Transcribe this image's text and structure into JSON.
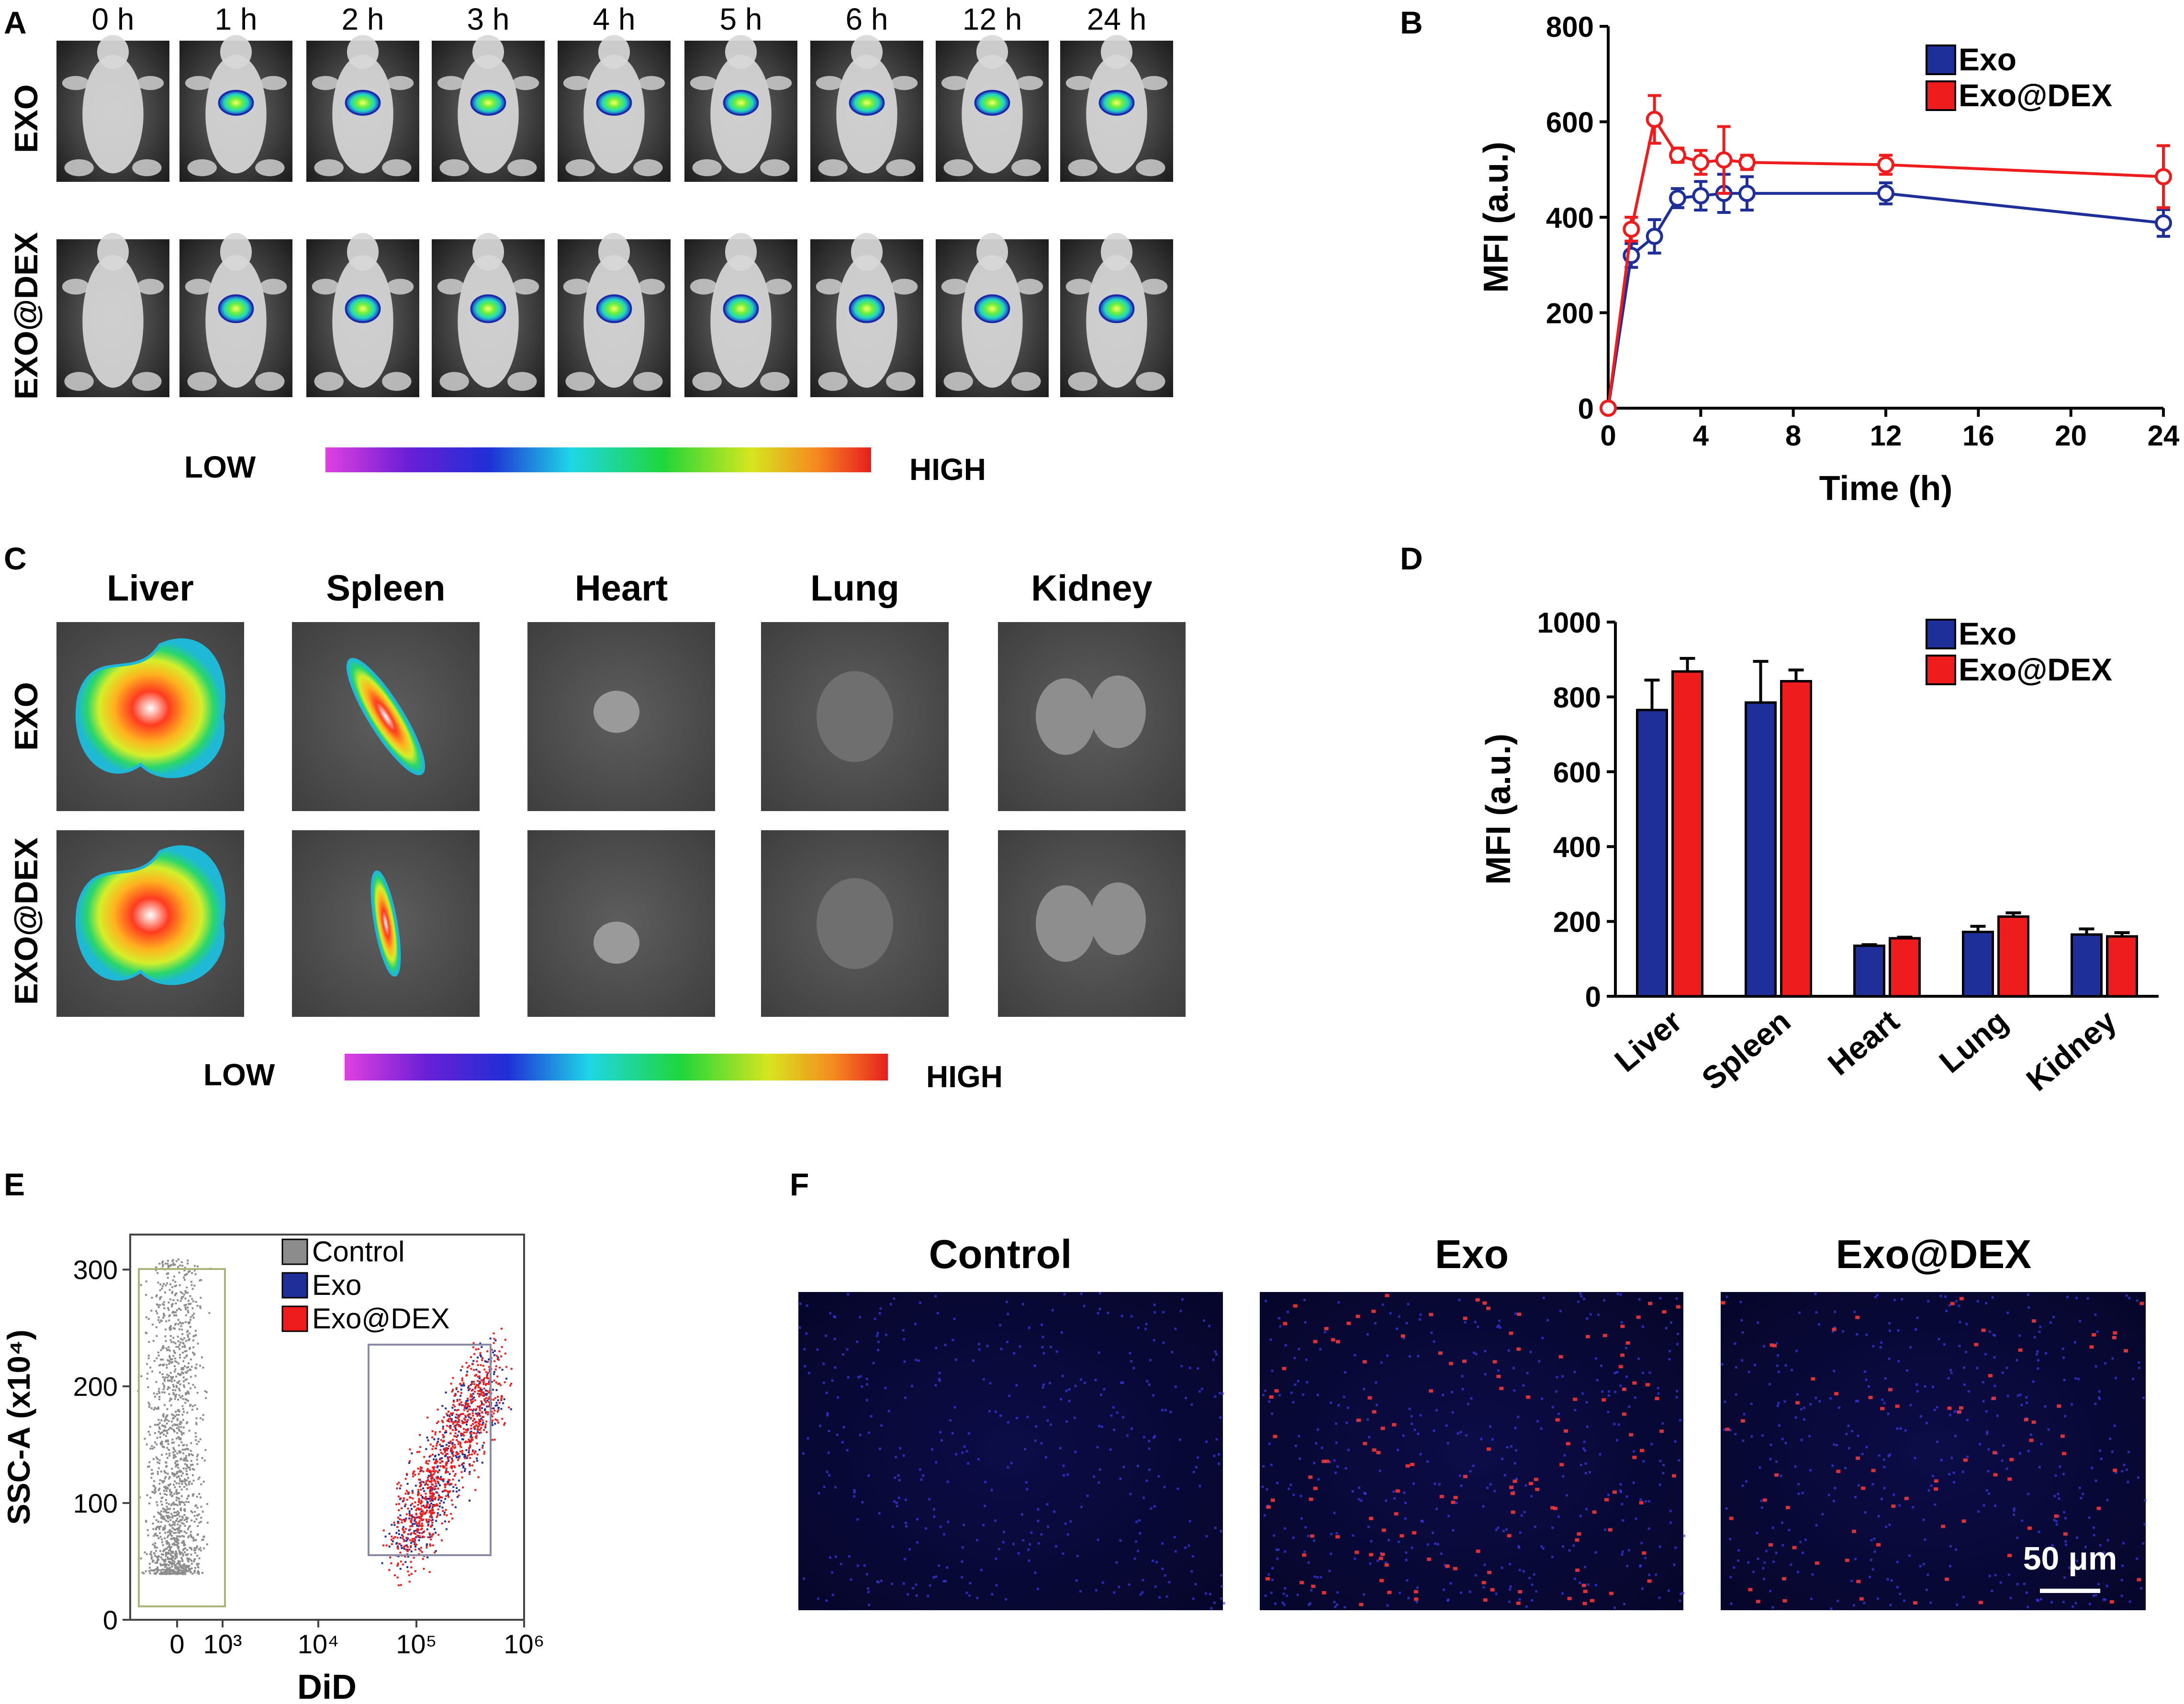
{
  "colors": {
    "exo": "#1f2f99",
    "exodex": "#ee1c1c",
    "control": "#8c8c8c",
    "gate_control": "#a9b47a",
    "gate_did": "#8a8aa6"
  },
  "panelA": {
    "label": "A",
    "time_labels": [
      "0 h",
      "1 h",
      "2 h",
      "3 h",
      "4 h",
      "5 h",
      "6 h",
      "12 h",
      "24 h"
    ],
    "row_labels": [
      "EXO",
      "EXO@DEX"
    ],
    "scale_low": "LOW",
    "scale_high": "HIGH"
  },
  "panelC": {
    "label": "C",
    "organs": [
      "Liver",
      "Spleen",
      "Heart",
      "Lung",
      "Kidney"
    ],
    "row_labels": [
      "EXO",
      "EXO@DEX"
    ],
    "scale_low": "LOW",
    "scale_high": "HIGH"
  },
  "panelE": {
    "label": "E"
  },
  "panelF": {
    "label": "F",
    "titles": [
      "Control",
      "Exo",
      "Exo@DEX"
    ],
    "scale_bar": "50 μm"
  },
  "chart_data": [
    {
      "panel": "B",
      "type": "line",
      "xlabel": "Time (h)",
      "ylabel": "MFI (a.u.)",
      "xlim": [
        0,
        24
      ],
      "ylim": [
        0,
        800
      ],
      "xticks": [
        0,
        4,
        8,
        12,
        16,
        20,
        24
      ],
      "yticks": [
        0,
        200,
        400,
        600,
        800
      ],
      "legend_position": "top-right",
      "x": [
        0,
        1,
        2,
        3,
        4,
        5,
        6,
        12,
        24
      ],
      "series": [
        {
          "name": "Exo",
          "values": [
            0,
            320,
            360,
            440,
            445,
            450,
            450,
            450,
            388
          ],
          "errors": [
            0,
            25,
            35,
            20,
            30,
            40,
            35,
            22,
            28
          ]
        },
        {
          "name": "Exo@DEX",
          "values": [
            0,
            375,
            605,
            530,
            515,
            520,
            515,
            510,
            485
          ],
          "errors": [
            0,
            25,
            50,
            15,
            25,
            70,
            15,
            20,
            65
          ]
        }
      ]
    },
    {
      "panel": "D",
      "type": "bar",
      "ylabel": "MFI (a.u.)",
      "ylim": [
        0,
        1000
      ],
      "yticks": [
        0,
        200,
        400,
        600,
        800,
        1000
      ],
      "legend_position": "top-right",
      "categories": [
        "Liver",
        "Spleen",
        "Heart",
        "Lung",
        "Kidney"
      ],
      "series": [
        {
          "name": "Exo",
          "values": [
            765,
            785,
            135,
            172,
            165
          ],
          "errors": [
            80,
            110,
            3,
            15,
            15
          ]
        },
        {
          "name": "Exo@DEX",
          "values": [
            868,
            842,
            155,
            213,
            160
          ],
          "errors": [
            35,
            30,
            3,
            10,
            10
          ]
        }
      ]
    },
    {
      "panel": "E",
      "type": "scatter",
      "xlabel": "DiD",
      "ylabel": "SSC-A (x10⁴)",
      "ylim": [
        0,
        330
      ],
      "yticks": [
        0,
        100,
        200,
        300
      ],
      "x_scale": "biexponential",
      "xtick_labels": [
        "0",
        "10³",
        "10⁴",
        "10⁵",
        "10⁶"
      ],
      "legend_position": "top-right",
      "series": [
        {
          "name": "Control"
        },
        {
          "name": "Exo"
        },
        {
          "name": "Exo@DEX"
        }
      ]
    }
  ]
}
